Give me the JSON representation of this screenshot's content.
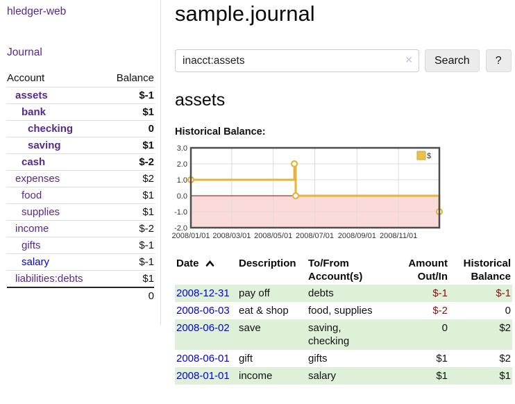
{
  "sidebar": {
    "app_title": "hledger-web",
    "journal_link": "Journal",
    "table": {
      "account_header": "Account",
      "balance_header": "Balance",
      "rows": [
        {
          "name": "assets",
          "depth": 1,
          "bold": true,
          "balance": "$-1",
          "balance_style": "negative"
        },
        {
          "name": "bank",
          "depth": 2,
          "bold": true,
          "balance": "$1",
          "balance_style": "normal"
        },
        {
          "name": "checking",
          "depth": 3,
          "bold": true,
          "balance": "0",
          "balance_style": "normal"
        },
        {
          "name": "saving",
          "depth": 3,
          "bold": true,
          "balance": "$1",
          "balance_style": "normal"
        },
        {
          "name": "cash",
          "depth": 2,
          "bold": true,
          "balance": "$-2",
          "balance_style": "negative"
        },
        {
          "name": "expenses",
          "depth": 1,
          "bold": false,
          "balance": "$2",
          "balance_style": "normal"
        },
        {
          "name": "food",
          "depth": 2,
          "bold": false,
          "balance": "$1",
          "balance_style": "normal"
        },
        {
          "name": "supplies",
          "depth": 2,
          "bold": false,
          "balance": "$1",
          "balance_style": "normal"
        },
        {
          "name": "income",
          "depth": 1,
          "bold": false,
          "balance": "$-2",
          "balance_style": "negative-dim"
        },
        {
          "name": "gifts",
          "depth": 2,
          "bold": false,
          "balance": "$-1",
          "balance_style": "negative-dim"
        },
        {
          "name": "salary",
          "depth": 2,
          "bold": false,
          "link_style": "unvisited",
          "balance": "$-1",
          "balance_style": "negative-dim"
        },
        {
          "name": "liabilities:debts",
          "depth": 1,
          "bold": false,
          "balance": "$1",
          "balance_style": "normal"
        }
      ],
      "total": "0"
    }
  },
  "header": {
    "title": "sample.journal"
  },
  "search": {
    "value": "inacct:assets",
    "clear_icon": "✕",
    "button_label": "Search",
    "help_label": "?"
  },
  "main": {
    "account_heading": "assets",
    "chart_label": "Historical Balance:"
  },
  "chart_data": {
    "type": "line",
    "step": true,
    "title": "Historical Balance:",
    "legend_position": "top-right",
    "legend_entries": [
      "$"
    ],
    "xrange": [
      "2008-01-01",
      "2008-12-31"
    ],
    "ylim": [
      -2,
      3
    ],
    "yticks": [
      "3.0",
      "2.0",
      "1.0",
      "0.0",
      "-1.0",
      "-2.0"
    ],
    "xticks": [
      {
        "date": "2008-01-01",
        "label": "2008/01/01"
      },
      {
        "date": "2008-03-01",
        "label": "2008/03/01"
      },
      {
        "date": "2008-05-01",
        "label": "2008/05/01"
      },
      {
        "date": "2008-07-01",
        "label": "2008/07/01"
      },
      {
        "date": "2008-09-01",
        "label": "2008/09/01"
      },
      {
        "date": "2008-11-01",
        "label": "2008/11/01"
      }
    ],
    "grid": true,
    "series": [
      {
        "name": "$",
        "points": [
          {
            "x": "2008-01-01",
            "y": 1
          },
          {
            "x": "2008-06-01",
            "y": 2
          },
          {
            "x": "2008-06-03",
            "y": 0
          },
          {
            "x": "2008-12-31",
            "y": -1
          }
        ]
      }
    ],
    "colors": {
      "line": "#e2b53e",
      "marker_fill": "#ffffff",
      "legend_fill": "#e8c24a",
      "legend_stroke": "#d2a63c",
      "negative_region": "#fbdada",
      "zero_line": "#8b0000",
      "border": "#4d4d4d",
      "grid": "#dcdcdc"
    }
  },
  "register": {
    "columns": [
      {
        "id": "date",
        "lines": [
          "Date"
        ],
        "align": "left",
        "sorted": "ascending"
      },
      {
        "id": "description",
        "lines": [
          "Description"
        ],
        "align": "left"
      },
      {
        "id": "accounts",
        "lines": [
          "To/From",
          "Account(s)"
        ],
        "align": "left"
      },
      {
        "id": "amount",
        "lines": [
          "Amount",
          "Out/In"
        ],
        "align": "right"
      },
      {
        "id": "balance",
        "lines": [
          "Historical",
          "Balance"
        ],
        "align": "right"
      }
    ],
    "rows": [
      {
        "date": "2008-12-31",
        "description": "pay off",
        "accounts": "debts",
        "amount": "$-1",
        "amount_negative": true,
        "balance": "$-1",
        "balance_negative": true
      },
      {
        "date": "2008-06-03",
        "description": "eat & shop",
        "accounts": "food, supplies",
        "amount": "$-2",
        "amount_negative": true,
        "balance": "0",
        "balance_negative": false
      },
      {
        "date": "2008-06-02",
        "description": "save",
        "accounts": "saving, checking",
        "amount": "0",
        "amount_negative": false,
        "balance": "$2",
        "balance_negative": false
      },
      {
        "date": "2008-06-01",
        "description": "gift",
        "accounts": "gifts",
        "amount": "$1",
        "amount_negative": false,
        "balance": "$2",
        "balance_negative": false
      },
      {
        "date": "2008-01-01",
        "description": "income",
        "accounts": "salary",
        "amount": "$1",
        "amount_negative": false,
        "balance": "$1",
        "balance_negative": false
      }
    ]
  },
  "colors": {
    "link_purple": "#552a90",
    "link_blue": "#0000e0",
    "negative_red": "#8b1010",
    "negative_dim": "#c38585",
    "row_stripe_green": "#dff0d8",
    "divider_gray": "#dddddd"
  }
}
